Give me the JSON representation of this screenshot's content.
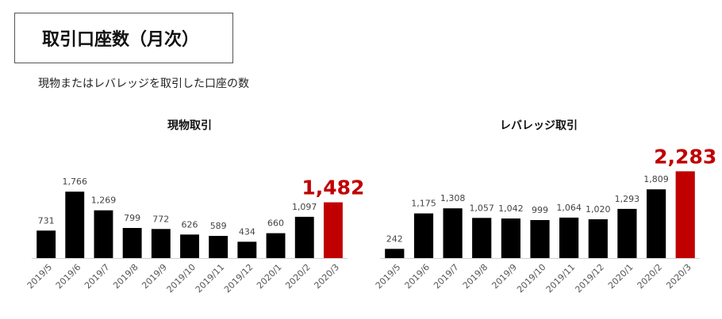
{
  "header": {
    "title": "取引口座数（月次）",
    "subtitle": "現物またはレバレッジを取引した口座の数"
  },
  "colors": {
    "bar": "#000000",
    "highlight": "#c00000",
    "axis": "#d0d0d0"
  },
  "chart_data": [
    {
      "type": "bar",
      "title": "現物取引",
      "categories": [
        "2019/5",
        "2019/6",
        "2019/7",
        "2019/8",
        "2019/9",
        "2019/10",
        "2019/11",
        "2019/12",
        "2020/1",
        "2020/2",
        "2020/3"
      ],
      "values": [
        731,
        1766,
        1269,
        799,
        772,
        626,
        589,
        434,
        660,
        1097,
        1482
      ],
      "value_labels": [
        "731",
        "1,766",
        "1,269",
        "799",
        "772",
        "626",
        "589",
        "434",
        "660",
        "1,097",
        "1,482"
      ],
      "highlight_index": 10,
      "ylim": [
        0,
        2400
      ]
    },
    {
      "type": "bar",
      "title": "レバレッジ取引",
      "categories": [
        "2019/5",
        "2019/6",
        "2019/7",
        "2019/8",
        "2019/9",
        "2019/10",
        "2019/11",
        "2019/12",
        "2020/1",
        "2020/2",
        "2020/3"
      ],
      "values": [
        242,
        1175,
        1308,
        1057,
        1042,
        999,
        1064,
        1020,
        1293,
        1809,
        2283
      ],
      "value_labels": [
        "242",
        "1,175",
        "1,308",
        "1,057",
        "1,042",
        "999",
        "1,064",
        "1,020",
        "1,293",
        "1,809",
        "2,283"
      ],
      "highlight_index": 10,
      "ylim": [
        0,
        2700
      ]
    }
  ]
}
